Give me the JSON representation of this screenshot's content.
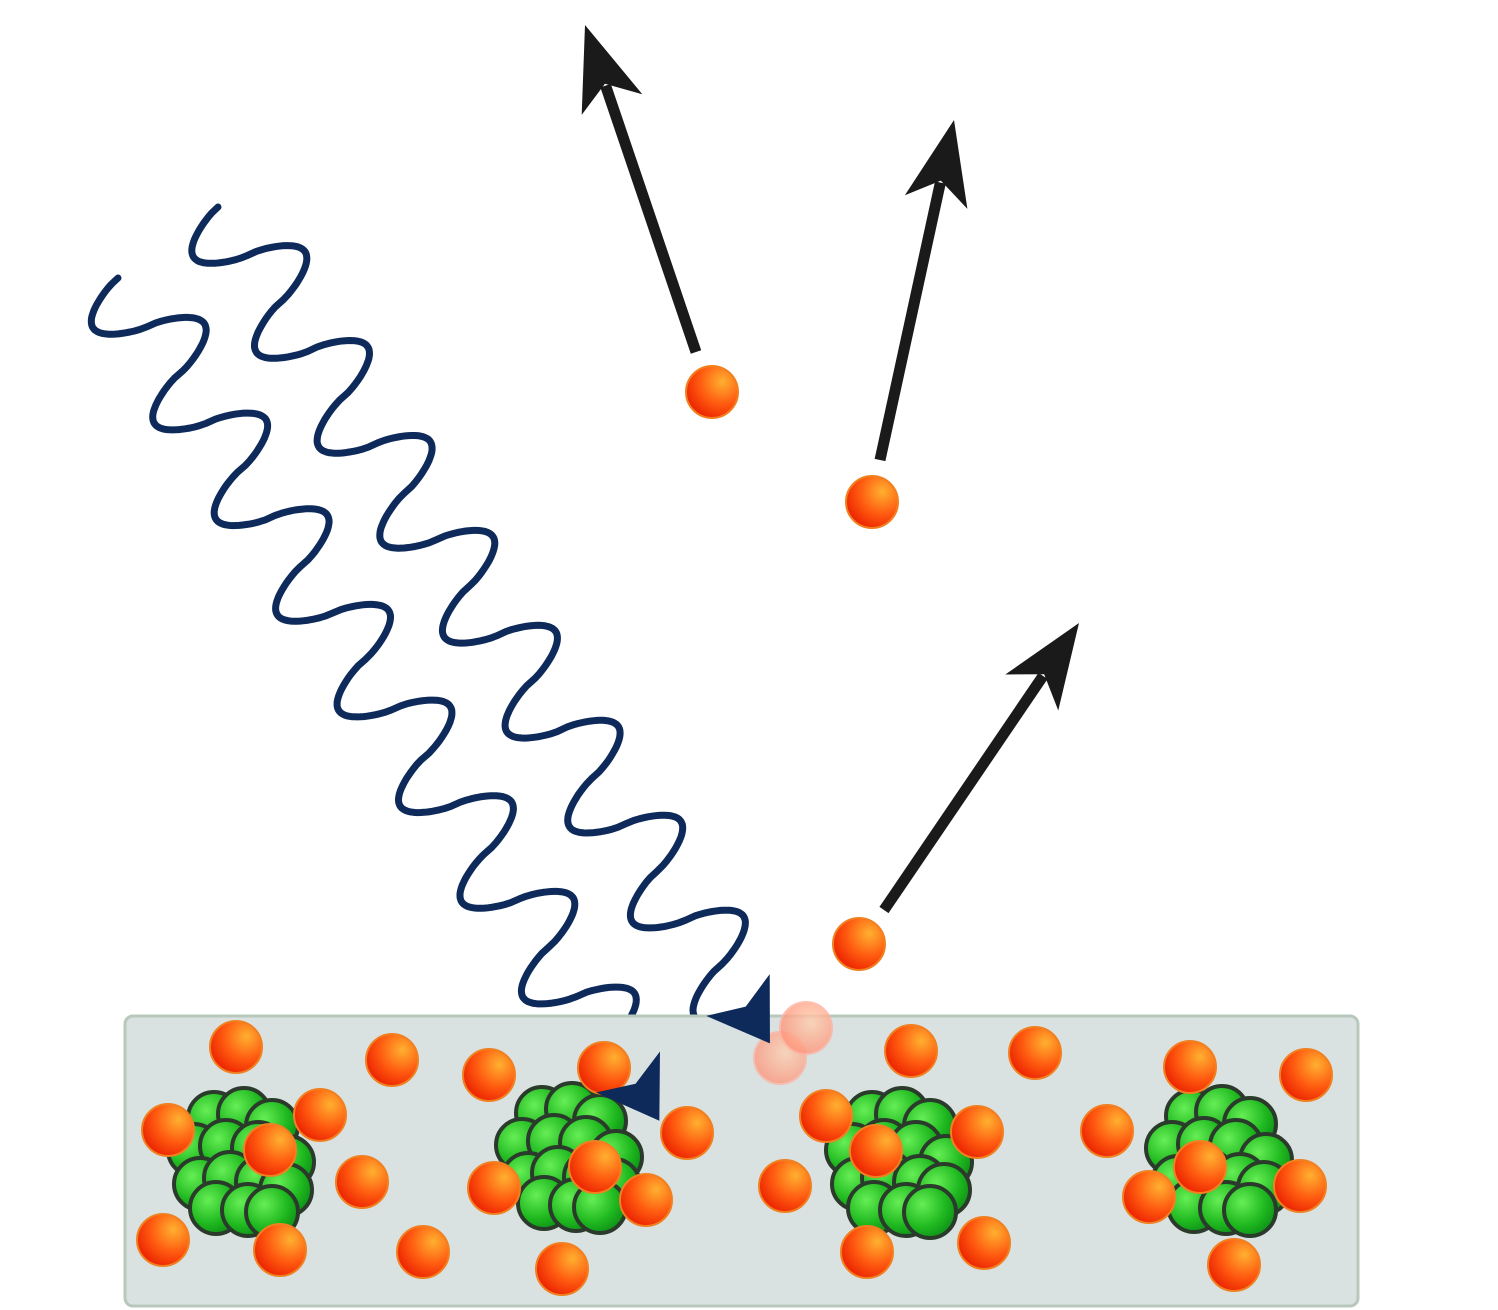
{
  "diagram": {
    "kind": "photoelectric-effect",
    "colors": {
      "background": "#ffffff",
      "metal_fill": "#d9e2e1",
      "metal_stroke": "#b9c8bc",
      "wave": "#0d2a5a",
      "arrow": "#1a1a1a",
      "electron_light": "#ffb030",
      "electron_dark": "#ea1f00",
      "electron_stroke": "#f08020",
      "nucleus_light": "#66ee55",
      "nucleus_dark": "#0a8a16",
      "nucleus_stroke": "#2b3b2b"
    },
    "icons": {
      "light_wave": "wavy-arrow",
      "emitted_electron": "electron-with-arrow",
      "atom": "nucleus-with-electrons"
    },
    "counts": {
      "incoming_waves": 2,
      "emitted_electrons": 3,
      "atoms": 4
    }
  }
}
